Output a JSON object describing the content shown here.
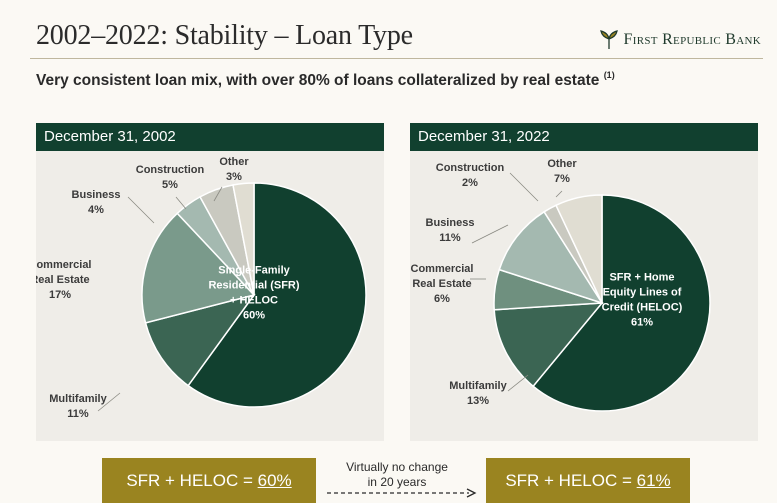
{
  "header": {
    "title": "2002–2022: Stability – Loan Type",
    "logo_text": "First Republic Bank",
    "logo_icon": "leaf-icon",
    "subtitle": "Very consistent loan mix, with over 80% of loans collateralized by real estate",
    "footnote": "(1)"
  },
  "colors": {
    "header_bg": "#11402f",
    "pill_bg": "#9a8420",
    "panel_bg": "#efede8"
  },
  "chart_data": [
    {
      "type": "pie",
      "title": "December 31, 2002",
      "slices": [
        {
          "label_lines": [
            "Single-Family",
            "Residential (SFR)",
            "+ HELOC"
          ],
          "pct_text": "60%",
          "value": 60,
          "color": "#11402f"
        },
        {
          "label_lines": [
            "Multifamily"
          ],
          "pct_text": "11%",
          "value": 11,
          "color": "#3b6553"
        },
        {
          "label_lines": [
            "Commercial",
            "Real Estate"
          ],
          "pct_text": "17%",
          "value": 17,
          "color": "#7a9a8b"
        },
        {
          "label_lines": [
            "Business"
          ],
          "pct_text": "4%",
          "value": 4,
          "color": "#a4b9b0"
        },
        {
          "label_lines": [
            "Construction"
          ],
          "pct_text": "5%",
          "value": 5,
          "color": "#c9c9c0"
        },
        {
          "label_lines": [
            "Other"
          ],
          "pct_text": "3%",
          "value": 3,
          "color": "#e0ddd2"
        }
      ]
    },
    {
      "type": "pie",
      "title": "December 31, 2022",
      "slices": [
        {
          "label_lines": [
            "SFR + Home",
            "Equity Lines of",
            "Credit (HELOC)"
          ],
          "pct_text": "61%",
          "value": 61,
          "color": "#11402f"
        },
        {
          "label_lines": [
            "Multifamily"
          ],
          "pct_text": "13%",
          "value": 13,
          "color": "#3b6553"
        },
        {
          "label_lines": [
            "Commercial",
            "Real Estate"
          ],
          "pct_text": "6%",
          "value": 6,
          "color": "#6f907f"
        },
        {
          "label_lines": [
            "Business"
          ],
          "pct_text": "11%",
          "value": 11,
          "color": "#a4b9b0"
        },
        {
          "label_lines": [
            "Construction"
          ],
          "pct_text": "2%",
          "value": 2,
          "color": "#c9c9c0"
        },
        {
          "label_lines": [
            "Other"
          ],
          "pct_text": "7%",
          "value": 7,
          "color": "#e0ddd2"
        }
      ]
    }
  ],
  "summary": {
    "left_prefix": "SFR + HELOC = ",
    "left_pct": "60%",
    "note_line1": "Virtually no change",
    "note_line2": "in 20 years",
    "right_prefix": "SFR + HELOC = ",
    "right_pct": "61%"
  }
}
